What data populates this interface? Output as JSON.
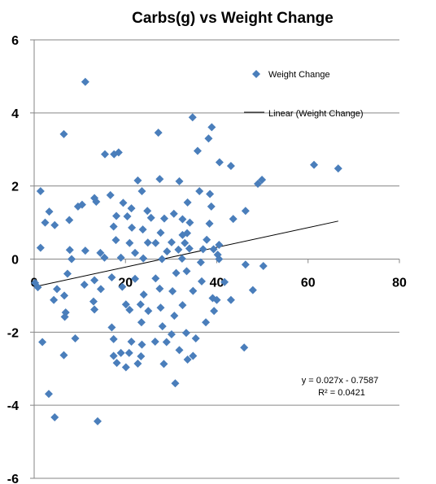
{
  "chart_data": {
    "type": "scatter",
    "title": "Carbs(g) vs Weight Change",
    "xlabel": "",
    "ylabel": "",
    "xlim": [
      0,
      80
    ],
    "ylim": [
      -6,
      6
    ],
    "x_ticks": [
      "0",
      "20",
      "40",
      "60",
      "80"
    ],
    "y_ticks": [
      "6",
      "4",
      "2",
      "0",
      "-2",
      "-4",
      "-6"
    ],
    "grid": "horizontal major gridlines",
    "legend_position": "top-right inside plot",
    "marker_color": "#4a7ebb",
    "series": [
      {
        "name": "Weight Change",
        "marker": "diamond",
        "points": [
          [
            11.2,
            4.85
          ],
          [
            34.7,
            3.88
          ],
          [
            6.5,
            3.42
          ],
          [
            27.2,
            3.46
          ],
          [
            38.9,
            3.61
          ],
          [
            38.2,
            3.3
          ],
          [
            35.8,
            2.96
          ],
          [
            15.5,
            2.87
          ],
          [
            17.5,
            2.87
          ],
          [
            18.5,
            2.92
          ],
          [
            40.6,
            2.65
          ],
          [
            43.1,
            2.55
          ],
          [
            61.3,
            2.58
          ],
          [
            66.6,
            2.48
          ],
          [
            49.9,
            2.17
          ],
          [
            49,
            2.06
          ],
          [
            22.7,
            2.15
          ],
          [
            27.5,
            2.19
          ],
          [
            31.8,
            2.13
          ],
          [
            1.4,
            1.86
          ],
          [
            16.7,
            1.75
          ],
          [
            23.6,
            1.86
          ],
          [
            13.2,
            1.67
          ],
          [
            13.6,
            1.57
          ],
          [
            36.2,
            1.86
          ],
          [
            38.5,
            1.78
          ],
          [
            9.6,
            1.44
          ],
          [
            10.5,
            1.49
          ],
          [
            19.5,
            1.54
          ],
          [
            33.6,
            1.55
          ],
          [
            38.8,
            1.44
          ],
          [
            3.3,
            1.3
          ],
          [
            21.3,
            1.39
          ],
          [
            24.8,
            1.32
          ],
          [
            30.6,
            1.24
          ],
          [
            46.3,
            1.32
          ],
          [
            2.4,
            1.0
          ],
          [
            4.5,
            0.93
          ],
          [
            7.7,
            1.07
          ],
          [
            18,
            1.18
          ],
          [
            20.4,
            1.17
          ],
          [
            25.6,
            1.13
          ],
          [
            28.5,
            1.11
          ],
          [
            32.5,
            1.09
          ],
          [
            34.1,
            1.0
          ],
          [
            38.4,
            0.97
          ],
          [
            43.6,
            1.1
          ],
          [
            17.4,
            0.89
          ],
          [
            21.4,
            0.86
          ],
          [
            23.8,
            0.81
          ],
          [
            27.7,
            0.72
          ],
          [
            32.5,
            0.66
          ],
          [
            33.5,
            0.71
          ],
          [
            37.8,
            0.53
          ],
          [
            17.9,
            0.52
          ],
          [
            20.9,
            0.44
          ],
          [
            24.9,
            0.45
          ],
          [
            26.6,
            0.44
          ],
          [
            30.1,
            0.46
          ],
          [
            33,
            0.44
          ],
          [
            40.5,
            0.39
          ],
          [
            1.4,
            0.31
          ],
          [
            7.8,
            0.25
          ],
          [
            11.2,
            0.23
          ],
          [
            14.5,
            0.17
          ],
          [
            22.1,
            0.17
          ],
          [
            29.1,
            0.21
          ],
          [
            31.6,
            0.26
          ],
          [
            34,
            0.29
          ],
          [
            37,
            0.27
          ],
          [
            39.3,
            0.27
          ],
          [
            40.2,
            0.12
          ],
          [
            8.2,
            0.0
          ],
          [
            15.4,
            0.04
          ],
          [
            19,
            0.04
          ],
          [
            23.9,
            0.02
          ],
          [
            28,
            0.0
          ],
          [
            32.4,
            0.01
          ],
          [
            36.5,
            -0.09
          ],
          [
            40.5,
            0.0
          ],
          [
            46.3,
            -0.15
          ],
          [
            50.2,
            -0.19
          ],
          [
            0.2,
            -0.65
          ],
          [
            7.3,
            -0.4
          ],
          [
            13.2,
            -0.58
          ],
          [
            17,
            -0.5
          ],
          [
            22.1,
            -0.54
          ],
          [
            26.6,
            -0.53
          ],
          [
            31.1,
            -0.38
          ],
          [
            33.4,
            -0.33
          ],
          [
            36.7,
            -0.61
          ],
          [
            41.7,
            -0.63
          ],
          [
            0.8,
            -0.77
          ],
          [
            5,
            -0.82
          ],
          [
            11,
            -0.7
          ],
          [
            14.6,
            -0.82
          ],
          [
            19.3,
            -0.76
          ],
          [
            24,
            -0.97
          ],
          [
            27.5,
            -0.81
          ],
          [
            30.3,
            -0.88
          ],
          [
            34.8,
            -0.87
          ],
          [
            39.1,
            -1.07
          ],
          [
            47.9,
            -0.85
          ],
          [
            4.3,
            -1.12
          ],
          [
            6.6,
            -1.0
          ],
          [
            13,
            -1.16
          ],
          [
            20.1,
            -1.24
          ],
          [
            23.3,
            -1.24
          ],
          [
            27.7,
            -1.33
          ],
          [
            32.5,
            -1.26
          ],
          [
            40,
            -1.12
          ],
          [
            43.1,
            -1.12
          ],
          [
            6.9,
            -1.46
          ],
          [
            13.2,
            -1.38
          ],
          [
            20.9,
            -1.39
          ],
          [
            25,
            -1.42
          ],
          [
            30.7,
            -1.55
          ],
          [
            37.6,
            -1.73
          ],
          [
            39.4,
            -1.42
          ],
          [
            6.7,
            -1.58
          ],
          [
            17,
            -1.87
          ],
          [
            23.5,
            -1.73
          ],
          [
            28.1,
            -1.84
          ],
          [
            33.3,
            -2.02
          ],
          [
            9,
            -2.17
          ],
          [
            17.4,
            -2.19
          ],
          [
            21.3,
            -2.26
          ],
          [
            26.5,
            -2.26
          ],
          [
            29,
            -2.27
          ],
          [
            35.4,
            -2.17
          ],
          [
            46,
            -2.42
          ],
          [
            1.8,
            -2.27
          ],
          [
            6.5,
            -2.63
          ],
          [
            17.4,
            -2.65
          ],
          [
            20.8,
            -2.57
          ],
          [
            23.4,
            -2.66
          ],
          [
            31.8,
            -2.49
          ],
          [
            34.8,
            -2.65
          ],
          [
            18.1,
            -2.84
          ],
          [
            20.1,
            -2.96
          ],
          [
            22.7,
            -2.86
          ],
          [
            28.4,
            -2.87
          ],
          [
            30.9,
            -3.4
          ],
          [
            33.6,
            -2.75
          ],
          [
            3.2,
            -3.69
          ],
          [
            4.5,
            -4.33
          ],
          [
            13.9,
            -4.44
          ],
          [
            19,
            -2.57
          ],
          [
            23.6,
            -2.34
          ],
          [
            30.1,
            -2.06
          ]
        ]
      },
      {
        "name": "Linear (Weight Change)",
        "type": "line",
        "slope": 0.027,
        "intercept": -0.7587,
        "x_range": [
          0.2,
          66.6
        ]
      }
    ],
    "annotations": {
      "equation": "y = 0.027x - 0.7587",
      "r2": "R² = 0.0421"
    }
  }
}
